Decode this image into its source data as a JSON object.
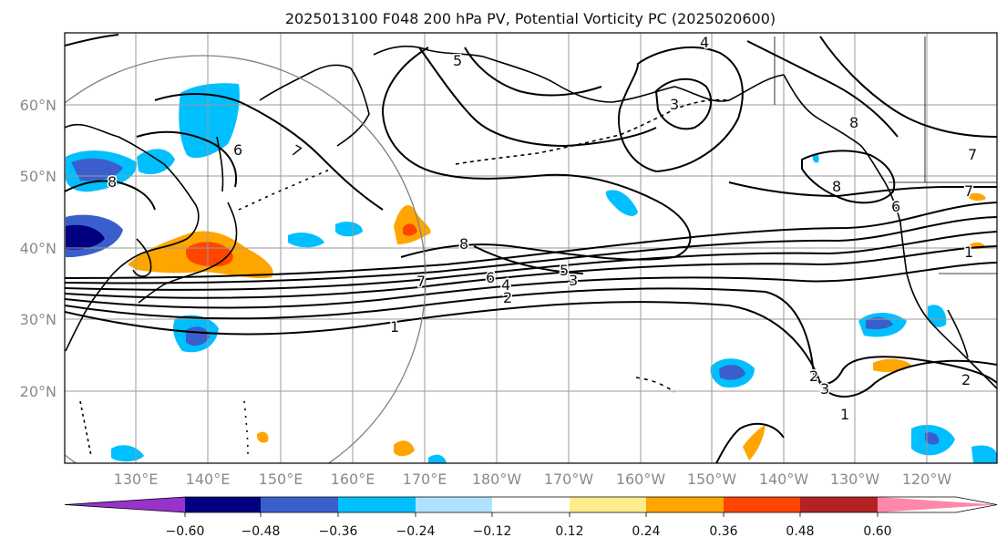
{
  "title": "2025013100 F048 200 hPa PV, Potential Vorticity PC (2025020600)",
  "map": {
    "lat_ticks": [
      "60°N",
      "50°N",
      "40°N",
      "30°N",
      "20°N"
    ],
    "lon_ticks": [
      "130°E",
      "140°E",
      "150°E",
      "160°E",
      "170°E",
      "180°W",
      "170°W",
      "160°W",
      "150°W",
      "140°W",
      "130°W",
      "120°W"
    ],
    "contour_labels": [
      "7",
      "5",
      "4",
      "3",
      "8",
      "6",
      "7",
      "8",
      "6",
      "7",
      "8",
      "7",
      "6",
      "5",
      "4",
      "3",
      "2",
      "1",
      "1",
      "2",
      "3",
      "2",
      "1",
      "8",
      "6"
    ]
  },
  "colorbar": {
    "tick_labels": [
      "−0.60",
      "−0.48",
      "−0.36",
      "−0.24",
      "−0.12",
      "0.12",
      "0.24",
      "0.36",
      "0.48",
      "0.60"
    ],
    "colors": [
      "#9933cc",
      "#000080",
      "#3a5fcd",
      "#00bfff",
      "#b0e2ff",
      "#ffffff",
      "#ffec8b",
      "#ffa500",
      "#ff4500",
      "#b22222",
      "#ff88aa"
    ]
  },
  "colors": {
    "frame": "#000000",
    "grid": "#9a9a9a",
    "coast": "#000000",
    "circle": "#808080"
  }
}
